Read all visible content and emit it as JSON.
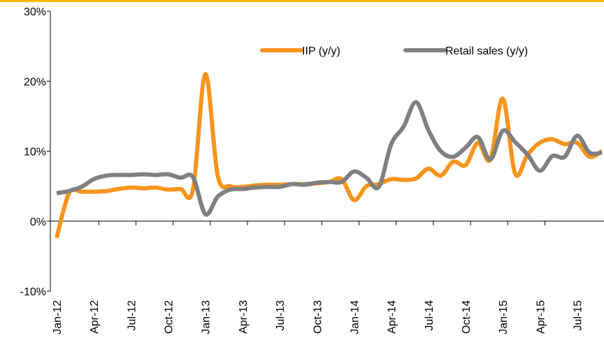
{
  "chart_data": {
    "type": "line",
    "categories": [
      "Jan-12",
      null,
      null,
      "Apr-12",
      null,
      null,
      "Jul-12",
      null,
      null,
      "Oct-12",
      null,
      null,
      "Jan-13",
      null,
      null,
      "Apr-13",
      null,
      null,
      "Jul-13",
      null,
      null,
      "Oct-13",
      null,
      null,
      "Jan-14",
      null,
      null,
      "Apr-14",
      null,
      null,
      "Jul-14",
      null,
      null,
      "Oct-14",
      null,
      null,
      "Jan-15",
      null,
      null,
      "Apr-15",
      null,
      null,
      "Jul-15",
      null,
      null
    ],
    "series": [
      {
        "name": "IIP (y/y)",
        "color": "#f7941d",
        "values": [
          -2.4,
          4,
          4.2,
          4.2,
          4.3,
          4.6,
          4.8,
          4.7,
          4.8,
          4.5,
          4.6,
          4.5,
          21,
          6.5,
          5,
          4.9,
          5.1,
          5.2,
          5.2,
          5.3,
          5.3,
          5.4,
          5.6,
          6,
          3,
          5,
          5.3,
          6,
          5.9,
          6.1,
          7.5,
          6.5,
          8.5,
          8,
          11.2,
          8.8,
          17.5,
          6.8,
          9.5,
          11.2,
          11.7,
          11,
          11.2,
          9.2,
          10
        ]
      },
      {
        "name": "Retail sales (y/y)",
        "color": "#808080",
        "values": [
          4,
          4.3,
          4.9,
          6,
          6.5,
          6.6,
          6.6,
          6.7,
          6.6,
          6.7,
          6.2,
          6.3,
          1,
          3.5,
          4.5,
          4.6,
          4.8,
          4.9,
          4.9,
          5.3,
          5.2,
          5.5,
          5.6,
          5.6,
          7.1,
          6.2,
          4.9,
          11,
          13.5,
          17,
          13,
          10,
          9.2,
          10.5,
          12,
          8.8,
          12.9,
          11.3,
          9.5,
          7.2,
          9.3,
          9.2,
          12.2,
          9.8,
          9.8
        ]
      }
    ],
    "ylim": [
      -10,
      30
    ],
    "yticks": [
      {
        "value": -10,
        "label": "-10%"
      },
      {
        "value": 0,
        "label": "0%"
      },
      {
        "value": 10,
        "label": "10%"
      },
      {
        "value": 20,
        "label": "20%"
      },
      {
        "value": 30,
        "label": "30%"
      }
    ],
    "grid": false,
    "legend": "upper right"
  }
}
